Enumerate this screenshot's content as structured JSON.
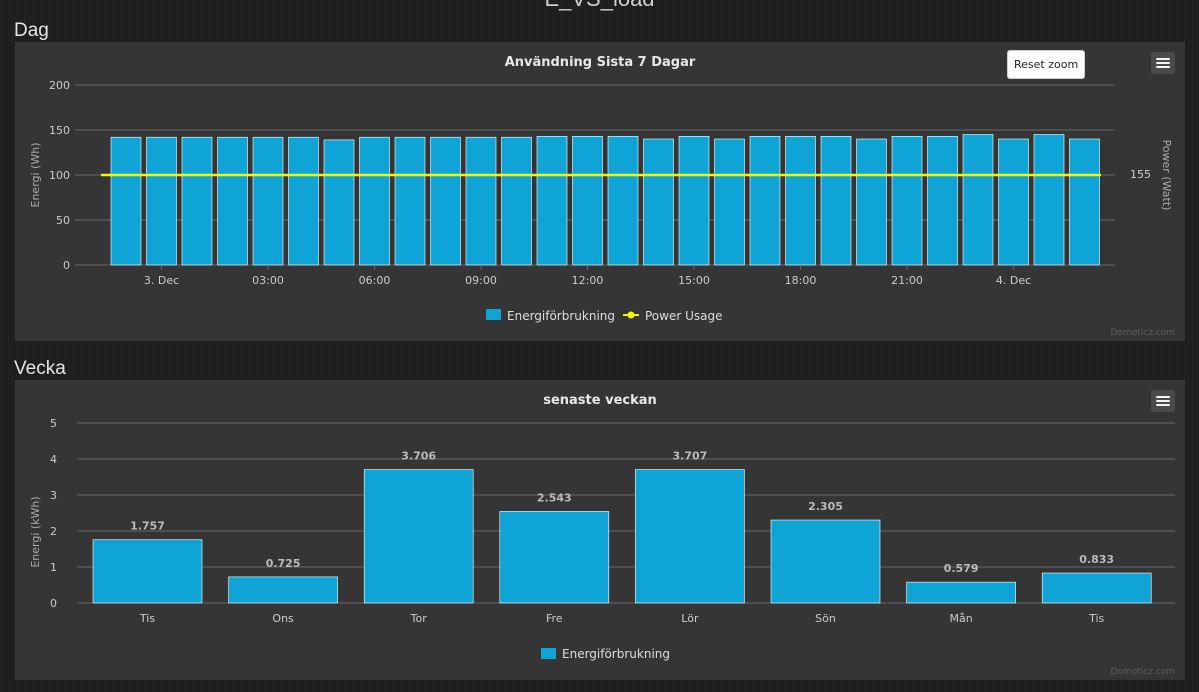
{
  "page": {
    "title": "E_VS_load"
  },
  "sections": {
    "day": "Dag",
    "week": "Vecka"
  },
  "reset_zoom_label": "Reset zoom",
  "credit": "Domoticz.com",
  "colors": {
    "bar": "#0ea4d6",
    "power": "#f5f500",
    "bg": "#353535",
    "grid": "#666666",
    "text": "#cccccc"
  },
  "icons": {
    "menu": "hamburger-menu-icon"
  },
  "chart_data": [
    {
      "type": "bar",
      "title": "Användning Sista 7 Dagar",
      "ylabel": "Energi (Wh)",
      "ylabel_right": "Power (Watt)",
      "ylim": [
        0,
        200
      ],
      "yticks": [
        0,
        50,
        100,
        150,
        200
      ],
      "y2_tick_label": "155",
      "x_tick_labels": [
        "3. Dec",
        "03:00",
        "06:00",
        "09:00",
        "12:00",
        "15:00",
        "18:00",
        "21:00",
        "4. Dec"
      ],
      "x_tick_bar_index": [
        1.5,
        4.5,
        7.5,
        10.5,
        13.5,
        16.5,
        19.5,
        22.5,
        25.5
      ],
      "series": [
        {
          "name": "Energiförbrukning",
          "values": [
            142,
            142,
            142,
            142,
            142,
            142,
            139,
            142,
            142,
            142,
            142,
            142,
            143,
            143,
            143,
            140,
            143,
            140,
            143,
            143,
            143,
            140,
            143,
            143,
            145,
            140,
            145,
            140
          ]
        },
        {
          "name": "Power Usage",
          "type": "line",
          "value": 100
        }
      ],
      "legend": "bottom-center",
      "grid": true
    },
    {
      "type": "bar",
      "title": "senaste veckan",
      "ylabel": "Energi (kWh)",
      "ylim": [
        0,
        5
      ],
      "yticks": [
        0,
        1,
        2,
        3,
        4,
        5
      ],
      "categories": [
        "Tis",
        "Ons",
        "Tor",
        "Fre",
        "Lör",
        "Sön",
        "Mån",
        "Tis"
      ],
      "series": [
        {
          "name": "Energiförbrukning",
          "values": [
            1.757,
            0.725,
            3.706,
            2.543,
            3.707,
            2.305,
            0.579,
            0.833
          ],
          "labels": [
            "1.757",
            "0.725",
            "3.706",
            "2.543",
            "3.707",
            "2.305",
            "0.579",
            "0.833"
          ]
        }
      ],
      "legend": "bottom-center",
      "grid": true
    }
  ]
}
